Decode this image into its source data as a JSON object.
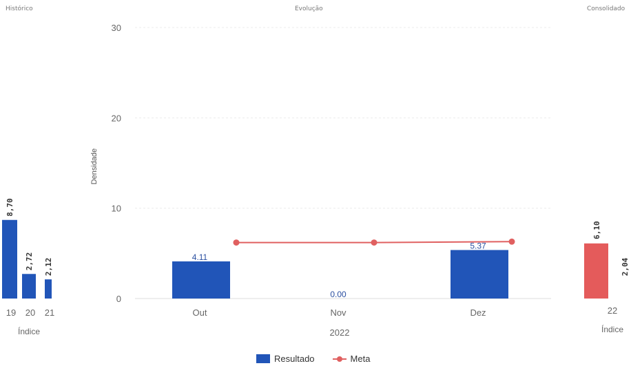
{
  "colors": {
    "resultado": "#2155b8",
    "meta": "#e06060",
    "consolidado": "#e45b5b"
  },
  "legend": {
    "resultado": "Resultado",
    "meta": "Meta"
  },
  "chart_data": [
    {
      "type": "bar",
      "title": "Histórico",
      "xlabel": "Índice",
      "categories": [
        "19",
        "20",
        "21"
      ],
      "values": [
        8.7,
        2.72,
        2.12
      ],
      "data_labels": [
        "8,70",
        "2,72",
        "2,12"
      ],
      "ylim": [
        0,
        30
      ]
    },
    {
      "type": "bar",
      "title": "Evolução",
      "xlabel": "2022",
      "ylabel": "Densidade",
      "categories": [
        "Out",
        "Nov",
        "Dez"
      ],
      "yticks": [
        0,
        10,
        20,
        30
      ],
      "ylim": [
        0,
        30
      ],
      "grid": true,
      "legend_position": "bottom",
      "series": [
        {
          "name": "Resultado",
          "type": "bar",
          "values": [
            4.11,
            0.0,
            5.37
          ],
          "data_labels": [
            "4.11",
            "0.00",
            "5.37"
          ]
        },
        {
          "name": "Meta",
          "type": "line",
          "values": [
            6.2,
            6.2,
            6.3
          ]
        }
      ]
    },
    {
      "type": "bar",
      "title": "Consolidado",
      "xlabel": "Índice",
      "categories": [
        "22"
      ],
      "series": [
        {
          "values": [
            6.1
          ],
          "data_labels": [
            "6,10"
          ]
        },
        {
          "values": [
            2.04
          ],
          "data_labels": [
            "2,04"
          ]
        }
      ],
      "ylim": [
        0,
        30
      ]
    }
  ]
}
